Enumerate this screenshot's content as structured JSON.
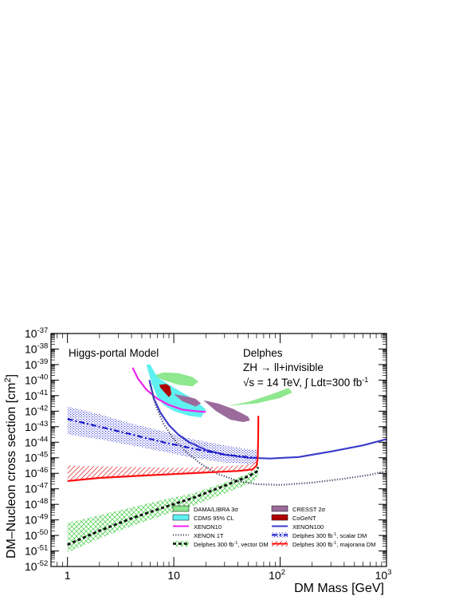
{
  "chart_data": {
    "type": "line",
    "xscale": "log",
    "yscale": "log",
    "xlim": [
      0.7,
      1000
    ],
    "ylim": [
      1e-52,
      1e-37
    ],
    "xlabel": "DM Mass [GeV]",
    "ylabel_main": "DM–Nucleon cross section [cm",
    "ylabel_sup": "2",
    "ylabel_end": "]",
    "grid": false,
    "x_tick_labels": [
      {
        "value": 1,
        "label": "1"
      },
      {
        "value": 10,
        "label": "10"
      },
      {
        "value": 100,
        "label": "10",
        "exp": "2"
      },
      {
        "value": 1000,
        "label": "10",
        "exp": "3"
      }
    ],
    "y_tick_labels": [
      {
        "exp": -37,
        "label": "10",
        "sup": "-37"
      },
      {
        "exp": -38,
        "label": "10",
        "sup": "-38"
      },
      {
        "exp": -39,
        "label": "10",
        "sup": "-39"
      },
      {
        "exp": -40,
        "label": "10",
        "sup": "-40"
      },
      {
        "exp": -41,
        "label": "10",
        "sup": "-41"
      },
      {
        "exp": -42,
        "label": "10",
        "sup": "-42"
      },
      {
        "exp": -43,
        "label": "10",
        "sup": "-43"
      },
      {
        "exp": -44,
        "label": "10",
        "sup": "-44"
      },
      {
        "exp": -45,
        "label": "10",
        "sup": "-45"
      },
      {
        "exp": -46,
        "label": "10",
        "sup": "-46"
      },
      {
        "exp": -47,
        "label": "10",
        "sup": "-47"
      },
      {
        "exp": -48,
        "label": "10",
        "sup": "-48"
      },
      {
        "exp": -49,
        "label": "10",
        "sup": "-49"
      },
      {
        "exp": -50,
        "label": "10",
        "sup": "-50"
      },
      {
        "exp": -51,
        "label": "10",
        "sup": "-51"
      },
      {
        "exp": -52,
        "label": "10",
        "sup": "-52"
      }
    ],
    "annotations": {
      "model": "Higgs-portal Model",
      "experiment": "Delphes",
      "process": "ZH → ll+invisible",
      "energy": "√s = 14 TeV, ∫ Ldt=300 fb",
      "energy_sup": "-1"
    },
    "colors": {
      "dama": "#8ee88e",
      "cdms": "#5ff0f0",
      "cresst": "#9b6b9b",
      "cogent": "#b00000",
      "xenon10": "#ee22ee",
      "xenon100": "#3b3bcc",
      "xenon1t": "#444466",
      "scalar": "#1818cc",
      "vector": "#111111",
      "majorana": "#ff1010",
      "vector_band": "#3fcc3f",
      "scalar_band": "#2a2acc",
      "majorana_band": "#e04040"
    },
    "series": [
      {
        "name": "XENON10",
        "key": "xenon10",
        "style": "solid",
        "x": [
          4.1,
          4.6,
          5.5,
          7,
          9,
          12,
          16,
          20
        ],
        "y": [
          -39.2,
          -39.9,
          -40.6,
          -41.2,
          -41.6,
          -41.9,
          -42.0,
          -42.05
        ]
      },
      {
        "name": "XENON100",
        "key": "xenon100",
        "style": "solid",
        "x": [
          5.9,
          6.5,
          7.5,
          9,
          11,
          14,
          20,
          30,
          50,
          80,
          150,
          300,
          600,
          1000
        ],
        "y": [
          -40.0,
          -41.2,
          -42.1,
          -42.9,
          -43.5,
          -44.0,
          -44.5,
          -44.8,
          -45.0,
          -45.05,
          -44.95,
          -44.6,
          -44.2,
          -43.8
        ]
      },
      {
        "name": "XENON 1T",
        "key": "xenon1t",
        "style": "dotted",
        "x": [
          6.0,
          6.8,
          8,
          10,
          13,
          18,
          25,
          40,
          60,
          100,
          200,
          400,
          700,
          1000
        ],
        "y": [
          -40.3,
          -41.7,
          -42.8,
          -43.8,
          -44.6,
          -45.4,
          -46.0,
          -46.5,
          -46.7,
          -46.75,
          -46.6,
          -46.35,
          -46.1,
          -45.85
        ]
      },
      {
        "name": "Delphes 300 fb⁻¹, scalar DM",
        "key": "scalar",
        "style": "dashdot",
        "x": [
          1,
          2,
          4,
          8,
          15,
          30,
          50,
          60,
          62
        ],
        "y": [
          -42.5,
          -43.0,
          -43.5,
          -44.0,
          -44.4,
          -44.8,
          -44.95,
          -45.0,
          -44.9
        ]
      },
      {
        "name": "Delphes 300 fb⁻¹, vector DM",
        "key": "vector",
        "style": "dashed",
        "x": [
          1,
          2,
          4,
          8,
          15,
          30,
          50,
          60,
          62
        ],
        "y": [
          -50.6,
          -49.7,
          -48.9,
          -48.2,
          -47.6,
          -46.8,
          -46.2,
          -45.9,
          -45.6
        ]
      },
      {
        "name": "Delphes 300 fb⁻¹, majorana DM",
        "key": "majorana",
        "style": "solid",
        "x": [
          1,
          2,
          5,
          10,
          20,
          40,
          55,
          60,
          61.5,
          62,
          62.4
        ],
        "y": [
          -46.5,
          -46.3,
          -46.15,
          -46.05,
          -45.95,
          -45.85,
          -45.75,
          -45.5,
          -45.0,
          -44.0,
          -42.3
        ]
      }
    ],
    "bands": [
      {
        "name": "vector DM uncertainty",
        "key": "vector_band",
        "hatch": "cross",
        "x": [
          1,
          2,
          4,
          8,
          15,
          30,
          50,
          60,
          62
        ],
        "y_low": [
          -51.1,
          -50.2,
          -49.4,
          -48.7,
          -48.1,
          -47.3,
          -46.7,
          -46.4,
          -46.0
        ],
        "y_high": [
          -49.2,
          -48.7,
          -48.2,
          -47.7,
          -47.3,
          -46.6,
          -46.0,
          -45.7,
          -45.3
        ]
      },
      {
        "name": "scalar DM uncertainty",
        "key": "scalar_band",
        "hatch": "dots",
        "x": [
          1,
          2,
          4,
          8,
          15,
          30,
          50,
          60,
          62
        ],
        "y_low": [
          -43.5,
          -43.8,
          -44.2,
          -44.6,
          -45.0,
          -45.3,
          -45.4,
          -45.4,
          -45.3
        ],
        "y_high": [
          -41.7,
          -42.2,
          -42.8,
          -43.3,
          -43.8,
          -44.2,
          -44.45,
          -44.5,
          -44.5
        ]
      },
      {
        "name": "majorana DM uncertainty",
        "key": "majorana_band",
        "hatch": "diag",
        "x": [
          1,
          2,
          5,
          10,
          20,
          40,
          55,
          60,
          62
        ],
        "y_low": [
          -46.5,
          -46.35,
          -46.2,
          -46.1,
          -46.0,
          -45.9,
          -45.85,
          -45.6,
          -45.2
        ],
        "y_high": [
          -45.5,
          -45.55,
          -45.6,
          -45.65,
          -45.6,
          -45.5,
          -45.4,
          -45.2,
          -44.9
        ]
      }
    ],
    "regions": [
      {
        "name": "DAMA/LIBRA 3σ",
        "key": "dama",
        "x": [
          6.5,
          8,
          11,
          15,
          17,
          15,
          11,
          8,
          6.5
        ],
        "y": [
          -39.7,
          -39.5,
          -39.55,
          -39.8,
          -40.1,
          -40.4,
          -40.3,
          -40.0,
          -39.7
        ]
      },
      {
        "name": "DAMA/LIBRA 3σ",
        "key": "dama",
        "x": [
          35,
          50,
          80,
          120,
          130,
          100,
          60,
          40,
          33,
          35
        ],
        "y": [
          -41.6,
          -41.4,
          -40.95,
          -40.5,
          -40.8,
          -41.15,
          -41.5,
          -41.6,
          -41.65,
          -41.6
        ]
      },
      {
        "name": "CDMS 95% CL",
        "key": "cdms",
        "x": [
          5.5,
          6,
          7,
          9,
          12,
          16,
          20,
          18,
          14,
          10,
          8,
          7,
          6.2,
          5.5
        ],
        "y": [
          -39.0,
          -39.0,
          -39.8,
          -40.3,
          -40.8,
          -41.3,
          -41.9,
          -42.4,
          -42.3,
          -42.0,
          -41.6,
          -41.1,
          -40.2,
          -39.0
        ]
      },
      {
        "name": "CoGeNT",
        "key": "cogent",
        "x": [
          7.3,
          8.5,
          9.2,
          9.5,
          9.0,
          8.2,
          7.5,
          7.3
        ],
        "y": [
          -40.3,
          -40.25,
          -40.4,
          -40.9,
          -41.1,
          -40.8,
          -40.5,
          -40.3
        ]
      },
      {
        "name": "CRESST 2σ",
        "key": "cresst",
        "x": [
          10,
          13,
          16,
          18,
          16,
          12,
          10
        ],
        "y": [
          -40.9,
          -41.05,
          -41.2,
          -41.5,
          -41.7,
          -41.35,
          -40.9
        ]
      },
      {
        "name": "CRESST 2σ",
        "key": "cresst",
        "x": [
          19,
          26,
          36,
          50,
          52,
          45,
          34,
          25,
          19
        ],
        "y": [
          -41.3,
          -41.5,
          -41.85,
          -42.35,
          -42.6,
          -42.7,
          -42.55,
          -42.0,
          -41.3
        ]
      }
    ],
    "legend": {
      "placement": "bottom-right",
      "entries": [
        {
          "label": "DAMA/LIBRA 3σ",
          "key": "dama",
          "kind": "box"
        },
        {
          "label": "CRESST 2σ",
          "key": "cresst",
          "kind": "box"
        },
        {
          "label": "CDMS 95% CL",
          "key": "cdms",
          "kind": "box"
        },
        {
          "label": "CoGeNT",
          "key": "cogent",
          "kind": "box"
        },
        {
          "label": "XENON10",
          "key": "xenon10",
          "kind": "line",
          "style": "solid"
        },
        {
          "label": "XENON100",
          "key": "xenon100",
          "kind": "line",
          "style": "solid"
        },
        {
          "label": "XENON 1T",
          "key": "xenon1t",
          "kind": "line",
          "style": "dotted"
        },
        {
          "label": "Delphes 300 fb",
          "sup": "-1",
          "tail": ", scalar DM",
          "key": "scalar",
          "kind": "bandline",
          "style": "dashdot",
          "band": "scalar_band"
        },
        {
          "label": "Delphes 300 fb",
          "sup": "-1",
          "tail": ", vector DM",
          "key": "vector",
          "kind": "bandline",
          "style": "dashed",
          "band": "vector_band"
        },
        {
          "label": "Delphes 300 fb",
          "sup": "-1",
          "tail": ", majorana DM",
          "key": "majorana",
          "kind": "bandline",
          "style": "solid",
          "band": "majorana_band"
        }
      ]
    }
  }
}
